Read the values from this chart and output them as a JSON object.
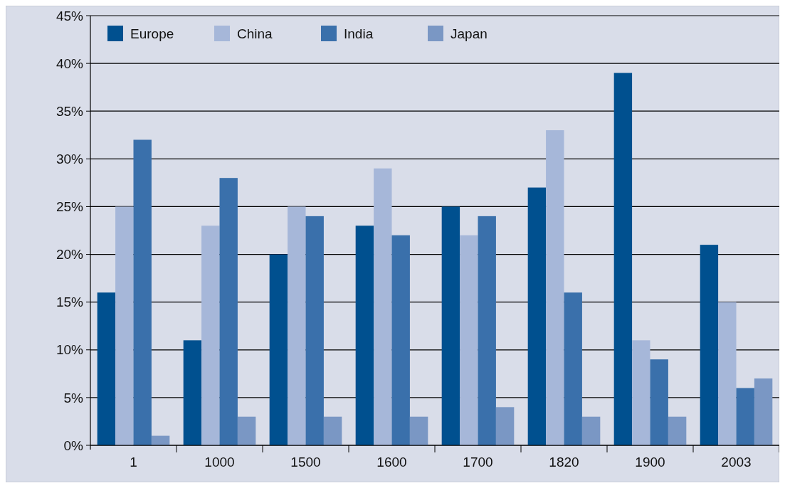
{
  "chart_data": {
    "type": "bar",
    "categories": [
      "1",
      "1000",
      "1500",
      "1600",
      "1700",
      "1820",
      "1900",
      "2003"
    ],
    "series": [
      {
        "name": "Europe",
        "color": "#00508f",
        "values": [
          16,
          11,
          20,
          23,
          25,
          27,
          39,
          21
        ]
      },
      {
        "name": "China",
        "color": "#a6b7d9",
        "values": [
          25,
          23,
          25,
          29,
          22,
          33,
          11,
          15
        ]
      },
      {
        "name": "India",
        "color": "#3a70ab",
        "values": [
          32,
          28,
          24,
          22,
          24,
          16,
          9,
          6
        ]
      },
      {
        "name": "Japan",
        "color": "#7a97c4",
        "values": [
          1,
          3,
          3,
          3,
          4,
          3,
          3,
          7
        ]
      }
    ],
    "ylim": [
      0,
      45
    ],
    "yticks": [
      {
        "value": 0,
        "label": "0%"
      },
      {
        "value": 5,
        "label": "5%"
      },
      {
        "value": 10,
        "label": "10%"
      },
      {
        "value": 15,
        "label": "15%"
      },
      {
        "value": 20,
        "label": "20%"
      },
      {
        "value": 25,
        "label": "25%"
      },
      {
        "value": 30,
        "label": "30%"
      },
      {
        "value": 35,
        "label": "35%"
      },
      {
        "value": 40,
        "label": "40%"
      },
      {
        "value": 45,
        "label": "45%"
      }
    ],
    "grid": "y",
    "legend": "top left"
  }
}
